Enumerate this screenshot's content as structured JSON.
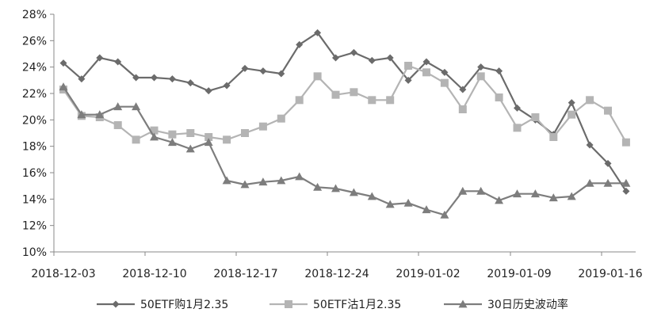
{
  "colors": {
    "call": "#6b6b6b",
    "put": "#b4b4b4",
    "hv": "#7d7d7d",
    "axis": "#888888",
    "text": "#222222"
  },
  "chart_data": {
    "type": "line",
    "ylim": [
      0.1,
      0.28
    ],
    "yticks": [
      "10%",
      "12%",
      "14%",
      "16%",
      "18%",
      "20%",
      "22%",
      "24%",
      "26%",
      "28%"
    ],
    "xticks": [
      "2018-12-03",
      "2018-12-10",
      "2018-12-17",
      "2018-12-24",
      "2019-01-02",
      "2019-01-09",
      "2019-01-16"
    ],
    "grid": false,
    "legend_position": "bottom",
    "series": [
      {
        "name": "50ETF购1月2.35",
        "marker": "diamond",
        "color_key": "call",
        "values": [
          0.243,
          0.231,
          0.247,
          0.244,
          0.232,
          0.232,
          0.231,
          0.228,
          0.222,
          0.226,
          0.239,
          0.237,
          0.235,
          0.257,
          0.266,
          0.247,
          0.251,
          0.245,
          0.247,
          0.23,
          0.244,
          0.236,
          0.223,
          0.24,
          0.237,
          0.209,
          0.2,
          0.189,
          0.213,
          0.181,
          0.167,
          0.146
        ]
      },
      {
        "name": "50ETF沽1月2.35",
        "marker": "square",
        "color_key": "put",
        "values": [
          0.223,
          0.203,
          0.202,
          0.196,
          0.185,
          0.192,
          0.189,
          0.19,
          0.187,
          0.185,
          0.19,
          0.195,
          0.201,
          0.215,
          0.233,
          0.219,
          0.221,
          0.215,
          0.215,
          0.241,
          0.236,
          0.228,
          0.208,
          0.233,
          0.217,
          0.194,
          0.202,
          0.187,
          0.204,
          0.215,
          0.207,
          0.183
        ]
      },
      {
        "name": "30日历史波动率",
        "marker": "triangle",
        "color_key": "hv",
        "values": [
          0.225,
          0.204,
          0.204,
          0.21,
          0.21,
          0.187,
          0.183,
          0.178,
          0.183,
          0.154,
          0.151,
          0.153,
          0.154,
          0.157,
          0.149,
          0.148,
          0.145,
          0.142,
          0.136,
          0.137,
          0.132,
          0.128,
          0.146,
          0.146,
          0.139,
          0.144,
          0.144,
          0.141,
          0.142,
          0.152,
          0.152,
          0.152
        ]
      }
    ]
  }
}
